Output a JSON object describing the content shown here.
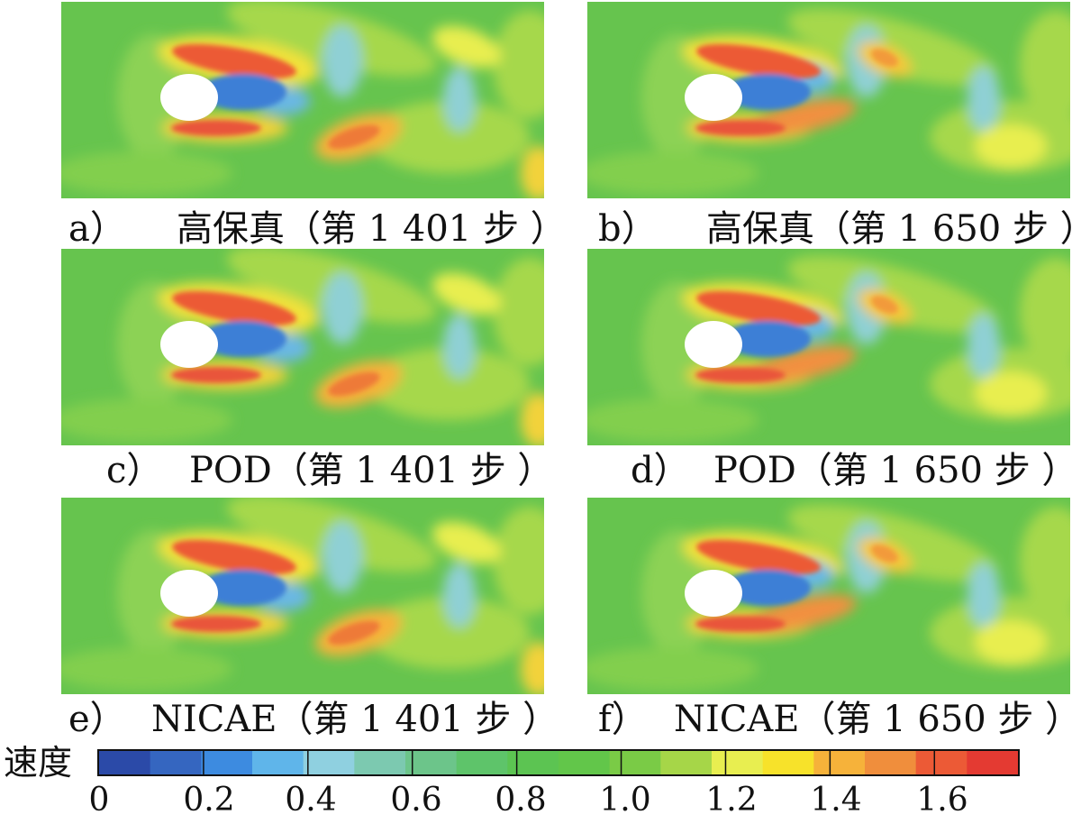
{
  "panels": [
    {
      "letter": "a）",
      "label": "高保真（第 1 401 步 ）",
      "variant": "A"
    },
    {
      "letter": "b）",
      "label": "高保真（第 1 650 步 ）",
      "variant": "B"
    },
    {
      "letter": "c）",
      "label": "POD（第 1 401 步 ）",
      "variant": "A"
    },
    {
      "letter": "d）",
      "label": "POD（第 1 650 步 ）",
      "variant": "B"
    },
    {
      "letter": "e）",
      "label": "NICAE（第 1 401 步 ）",
      "variant": "A"
    },
    {
      "letter": "f）",
      "label": "NICAE（第 1 650 步 ）",
      "variant": "B"
    }
  ],
  "colorbar": {
    "title": "速度",
    "ticks": [
      "0",
      "0.2",
      "0.4",
      "0.6",
      "0.8",
      "1.0",
      "1.2",
      "1.4",
      "1.6"
    ],
    "colors": [
      "#2b4aa8",
      "#3566c0",
      "#3d8be0",
      "#5fb5ea",
      "#8fd0e0",
      "#7cc9b0",
      "#6cc58a",
      "#5ec46a",
      "#5cc452",
      "#62c64a",
      "#7acb46",
      "#a6d648",
      "#e8ee50",
      "#f7e22a",
      "#f6b23a",
      "#f08e3c",
      "#ec5a36",
      "#e43a32"
    ],
    "colors_hex_note_removed": true
  }
}
